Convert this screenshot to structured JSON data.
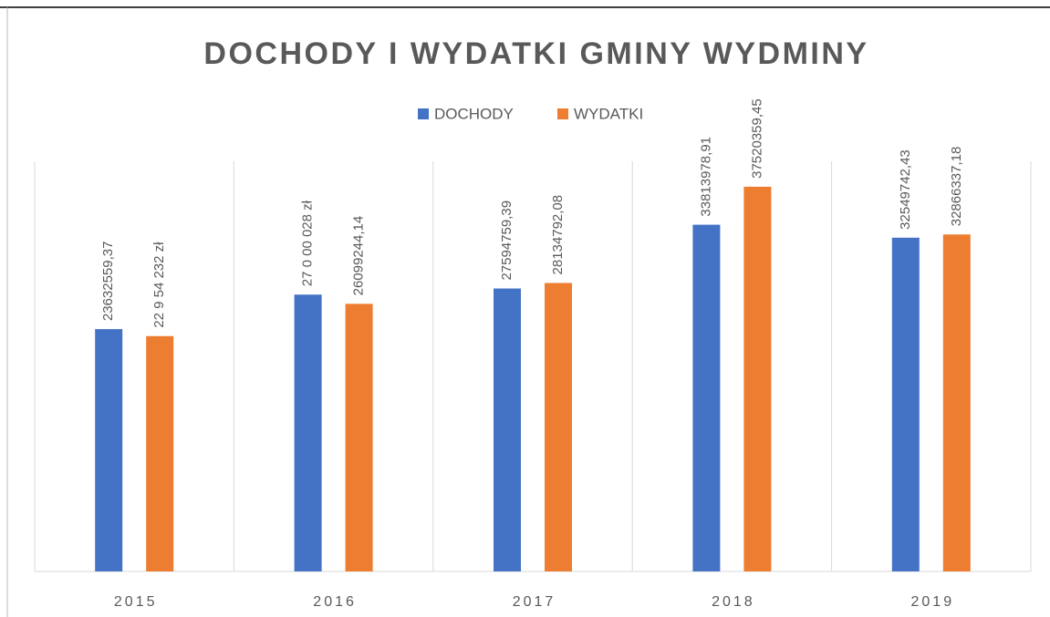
{
  "chart_data": {
    "type": "bar",
    "title": "DOCHODY I WYDATKI GMINY WYDMINY",
    "categories": [
      "2015",
      "2016",
      "2017",
      "2018",
      "2019"
    ],
    "series": [
      {
        "name": "DOCHODY",
        "color": "#4472c4",
        "values": [
          23632559.37,
          27000028,
          27594759.39,
          33813978.91,
          32549742.43
        ],
        "value_labels": [
          "23632559,37",
          "27 0 00 028 zł",
          "27594759,39",
          "33813978,91",
          "32549742,43"
        ]
      },
      {
        "name": "WYDATKI",
        "color": "#ed7d31",
        "values": [
          22954232,
          26099244.14,
          28134792.08,
          37520359.45,
          32866337.18
        ],
        "value_labels": [
          "22 9 54 232 zł",
          "26099244,14",
          "28134792,08",
          "37520359,45",
          "32866337,18"
        ]
      }
    ],
    "ylim": [
      0,
      40000000
    ],
    "legend": "top"
  }
}
